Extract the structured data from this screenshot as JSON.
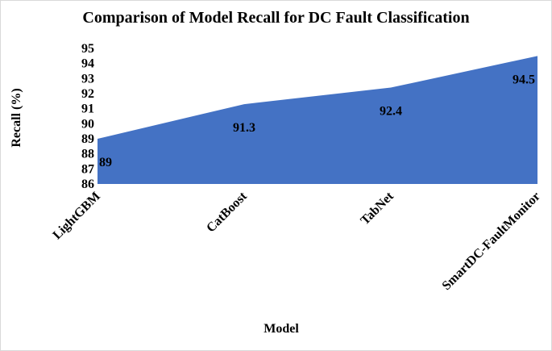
{
  "chart_data": {
    "type": "area",
    "title": "Comparison of Model Recall for DC Fault Classification",
    "xlabel": "Model",
    "ylabel": "Recall (%)",
    "categories": [
      "LightGBM",
      "CatBoost",
      "TabNet",
      "SmartDC-FaultMonitor"
    ],
    "values": [
      89,
      91.3,
      92.4,
      94.5
    ],
    "data_labels": [
      "89",
      "91.3",
      "92.4",
      "94.5"
    ],
    "ylim": [
      86,
      95
    ],
    "yticks": [
      "86",
      "87",
      "88",
      "89",
      "90",
      "91",
      "92",
      "93",
      "94",
      "95"
    ],
    "grid": false,
    "legend": "none",
    "fill_color": "#4472C4"
  }
}
